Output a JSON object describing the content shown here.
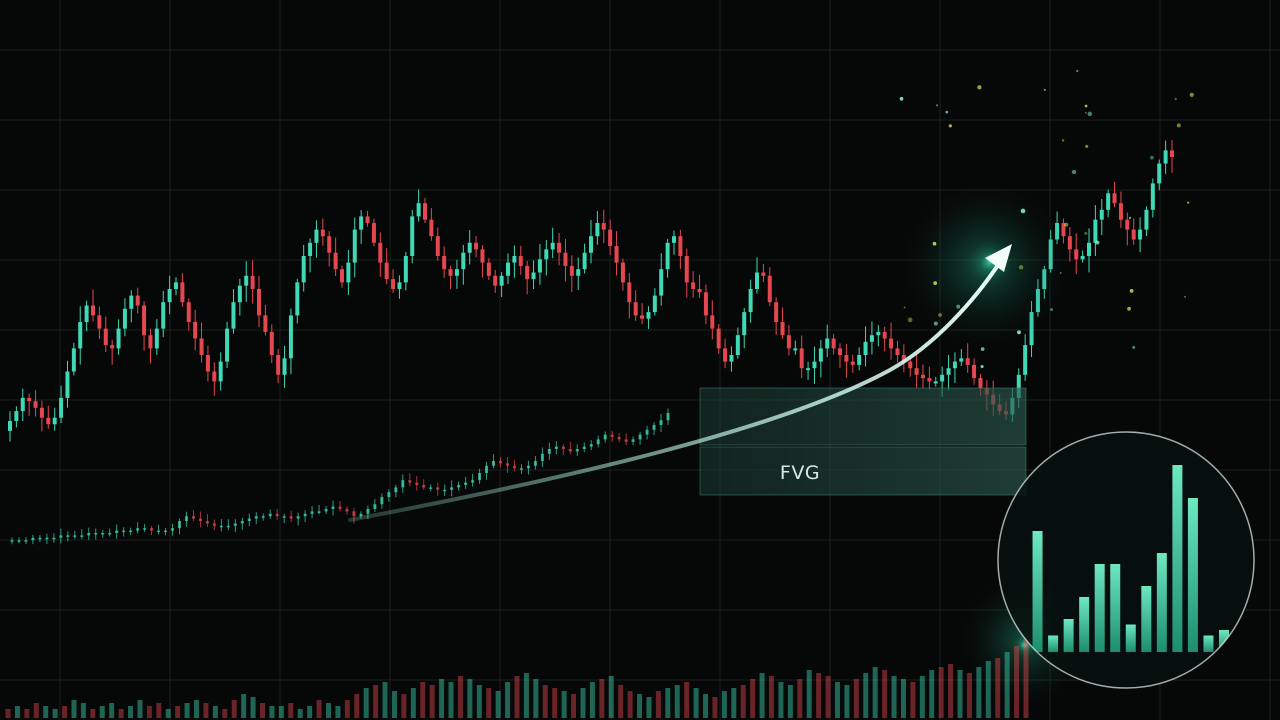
{
  "chart_data": {
    "type": "candlestick",
    "title": "",
    "xlabel": "",
    "ylabel": "",
    "grid": true,
    "colors": {
      "up": "#3fd9b6",
      "down": "#e5474f",
      "background": "#060707",
      "accent": "#3ef2b8"
    },
    "price_range": [
      0,
      100
    ],
    "series": [
      {
        "role": "main-price",
        "closes": [
          30,
          33,
          37,
          36,
          34,
          31,
          29,
          31,
          37,
          45,
          52,
          60,
          65,
          62,
          58,
          53,
          52,
          58,
          64,
          68,
          65,
          56,
          52,
          58,
          66,
          70,
          72,
          66,
          60,
          55,
          50,
          45,
          42,
          48,
          58,
          66,
          71,
          74,
          70,
          62,
          57,
          50,
          44,
          49,
          62,
          72,
          80,
          84,
          88,
          86,
          81,
          76,
          72,
          78,
          88,
          92,
          90,
          84,
          78,
          73,
          70,
          72,
          80,
          92,
          96,
          91,
          86,
          80,
          76,
          74,
          76,
          81,
          84,
          82,
          78,
          74,
          71,
          74,
          78,
          80,
          77,
          73,
          75,
          79,
          82,
          84,
          81,
          77,
          74,
          76,
          81,
          86,
          90,
          88,
          83,
          78,
          72,
          66,
          62,
          61,
          63,
          68,
          76,
          84,
          86,
          80,
          72,
          70,
          69,
          62,
          58,
          52,
          48,
          50,
          56,
          63,
          70,
          75,
          74,
          66,
          60,
          56,
          52,
          52,
          46,
          46,
          48,
          52,
          55,
          52,
          50,
          48,
          47,
          50,
          54,
          56,
          57,
          55,
          52,
          50,
          48,
          46,
          44,
          43,
          42,
          42,
          44,
          46,
          48,
          49,
          47,
          43,
          40,
          38,
          35,
          33,
          32,
          37,
          44,
          53,
          63,
          70,
          76,
          85,
          90,
          86,
          82,
          79,
          80,
          84,
          91,
          94,
          99,
          96,
          91,
          88,
          85,
          88,
          94,
          102,
          108,
          112,
          110
        ],
        "opens": [
          27,
          30,
          33,
          37,
          36,
          34,
          31,
          29,
          31,
          37,
          45,
          52,
          60,
          65,
          62,
          58,
          53,
          52,
          58,
          64,
          68,
          65,
          56,
          52,
          58,
          66,
          70,
          72,
          66,
          60,
          55,
          50,
          45,
          42,
          48,
          58,
          66,
          71,
          74,
          70,
          62,
          57,
          50,
          44,
          49,
          62,
          72,
          80,
          84,
          88,
          86,
          81,
          76,
          72,
          78,
          88,
          92,
          90,
          84,
          78,
          73,
          70,
          72,
          80,
          92,
          96,
          91,
          86,
          80,
          76,
          74,
          76,
          81,
          84,
          82,
          78,
          74,
          71,
          74,
          78,
          80,
          77,
          73,
          75,
          79,
          82,
          84,
          81,
          77,
          74,
          76,
          81,
          86,
          90,
          88,
          83,
          78,
          72,
          66,
          62,
          61,
          63,
          68,
          76,
          84,
          86,
          80,
          72,
          70,
          69,
          62,
          58,
          52,
          48,
          50,
          56,
          63,
          70,
          75,
          74,
          66,
          60,
          56,
          52,
          52,
          46,
          46,
          48,
          52,
          55,
          52,
          50,
          48,
          47,
          50,
          54,
          56,
          57,
          55,
          52,
          50,
          48,
          46,
          44,
          43,
          42,
          42,
          44,
          46,
          48,
          49,
          47,
          43,
          40,
          38,
          35,
          33,
          32,
          37,
          44,
          53,
          63,
          70,
          76,
          85,
          90,
          86,
          82,
          79,
          80,
          84,
          91,
          94,
          99,
          96,
          91,
          88,
          85,
          88,
          94,
          102,
          108,
          112
        ]
      },
      {
        "role": "lower-ghost-price",
        "closes": [
          2,
          2,
          2,
          3,
          3,
          3,
          3,
          4,
          4,
          4,
          4,
          5,
          5,
          5,
          5,
          6,
          6,
          6,
          7,
          7,
          6,
          6,
          6,
          7,
          10,
          12,
          11,
          10,
          9,
          8,
          8,
          8,
          9,
          10,
          11,
          12,
          12,
          13,
          12,
          12,
          11,
          12,
          13,
          14,
          14,
          15,
          16,
          15,
          14,
          12,
          13,
          15,
          17,
          20,
          22,
          24,
          27,
          26,
          25,
          24,
          24,
          23,
          23,
          24,
          25,
          26,
          27,
          30,
          33,
          35,
          34,
          33,
          32,
          32,
          33,
          35,
          38,
          40,
          41,
          40,
          39,
          40,
          41,
          42,
          44,
          46,
          45,
          44,
          43,
          44,
          46,
          48,
          50,
          52,
          55
        ],
        "opens": [
          2,
          2,
          2,
          2,
          3,
          3,
          3,
          3,
          4,
          4,
          4,
          4,
          5,
          5,
          5,
          5,
          6,
          6,
          6,
          7,
          7,
          6,
          6,
          6,
          7,
          10,
          12,
          11,
          10,
          9,
          8,
          8,
          8,
          9,
          10,
          11,
          12,
          12,
          13,
          12,
          12,
          11,
          12,
          13,
          14,
          14,
          15,
          16,
          15,
          14,
          12,
          13,
          15,
          17,
          20,
          22,
          24,
          27,
          26,
          25,
          24,
          24,
          23,
          23,
          24,
          25,
          26,
          27,
          30,
          33,
          35,
          34,
          33,
          32,
          32,
          33,
          35,
          38,
          40,
          41,
          40,
          39,
          40,
          41,
          42,
          44,
          46,
          45,
          44,
          43,
          44,
          46,
          48,
          50,
          52
        ]
      }
    ],
    "volume": [
      3,
      4,
      3,
      5,
      4,
      3,
      4,
      6,
      5,
      3,
      4,
      5,
      3,
      4,
      6,
      4,
      5,
      3,
      4,
      5,
      6,
      5,
      4,
      3,
      6,
      8,
      7,
      5,
      4,
      4,
      5,
      3,
      4,
      6,
      5,
      4,
      6,
      8,
      10,
      11,
      12,
      9,
      8,
      10,
      12,
      11,
      13,
      12,
      14,
      13,
      11,
      10,
      9,
      12,
      14,
      15,
      13,
      11,
      10,
      9,
      8,
      10,
      12,
      13,
      14,
      11,
      9,
      8,
      7,
      9,
      10,
      11,
      12,
      10,
      8,
      7,
      9,
      10,
      11,
      13,
      15,
      14,
      12,
      11,
      13,
      16,
      15,
      14,
      12,
      11,
      13,
      15,
      17,
      16,
      14,
      13,
      12,
      14,
      16,
      17,
      18,
      16,
      15,
      17,
      19,
      20,
      22,
      24,
      26
    ],
    "inset_volume": [
      2,
      22,
      3,
      6,
      10,
      16,
      16,
      5,
      12,
      18,
      34,
      28,
      3,
      4
    ],
    "annotations": [
      {
        "type": "zone",
        "label": "FVG",
        "price_range": [
          22,
          38
        ]
      },
      {
        "type": "arrow",
        "label": "",
        "direction": "up"
      }
    ]
  }
}
